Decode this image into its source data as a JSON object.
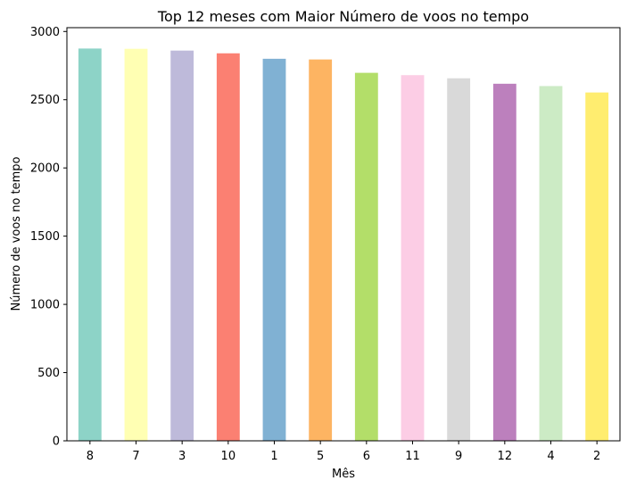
{
  "chart_data": {
    "type": "bar",
    "title": "Top 12 meses com Maior Número de voos no tempo",
    "xlabel": "Mês",
    "ylabel": "Número de voos no tempo",
    "categories": [
      "8",
      "7",
      "3",
      "10",
      "1",
      "5",
      "6",
      "11",
      "9",
      "12",
      "4",
      "2"
    ],
    "values": [
      2875,
      2873,
      2860,
      2840,
      2800,
      2795,
      2697,
      2680,
      2657,
      2617,
      2600,
      2553
    ],
    "colors": [
      "#8dd3c7",
      "#ffffb3",
      "#bebada",
      "#fb8072",
      "#80b1d3",
      "#fdb462",
      "#b3de69",
      "#fccde5",
      "#d9d9d9",
      "#bc80bd",
      "#ccebc5",
      "#ffed6f"
    ],
    "ylim": [
      0,
      3000
    ],
    "yticks": [
      0,
      500,
      1000,
      1500,
      2000,
      2500,
      3000
    ],
    "grid": false,
    "legend": false
  }
}
